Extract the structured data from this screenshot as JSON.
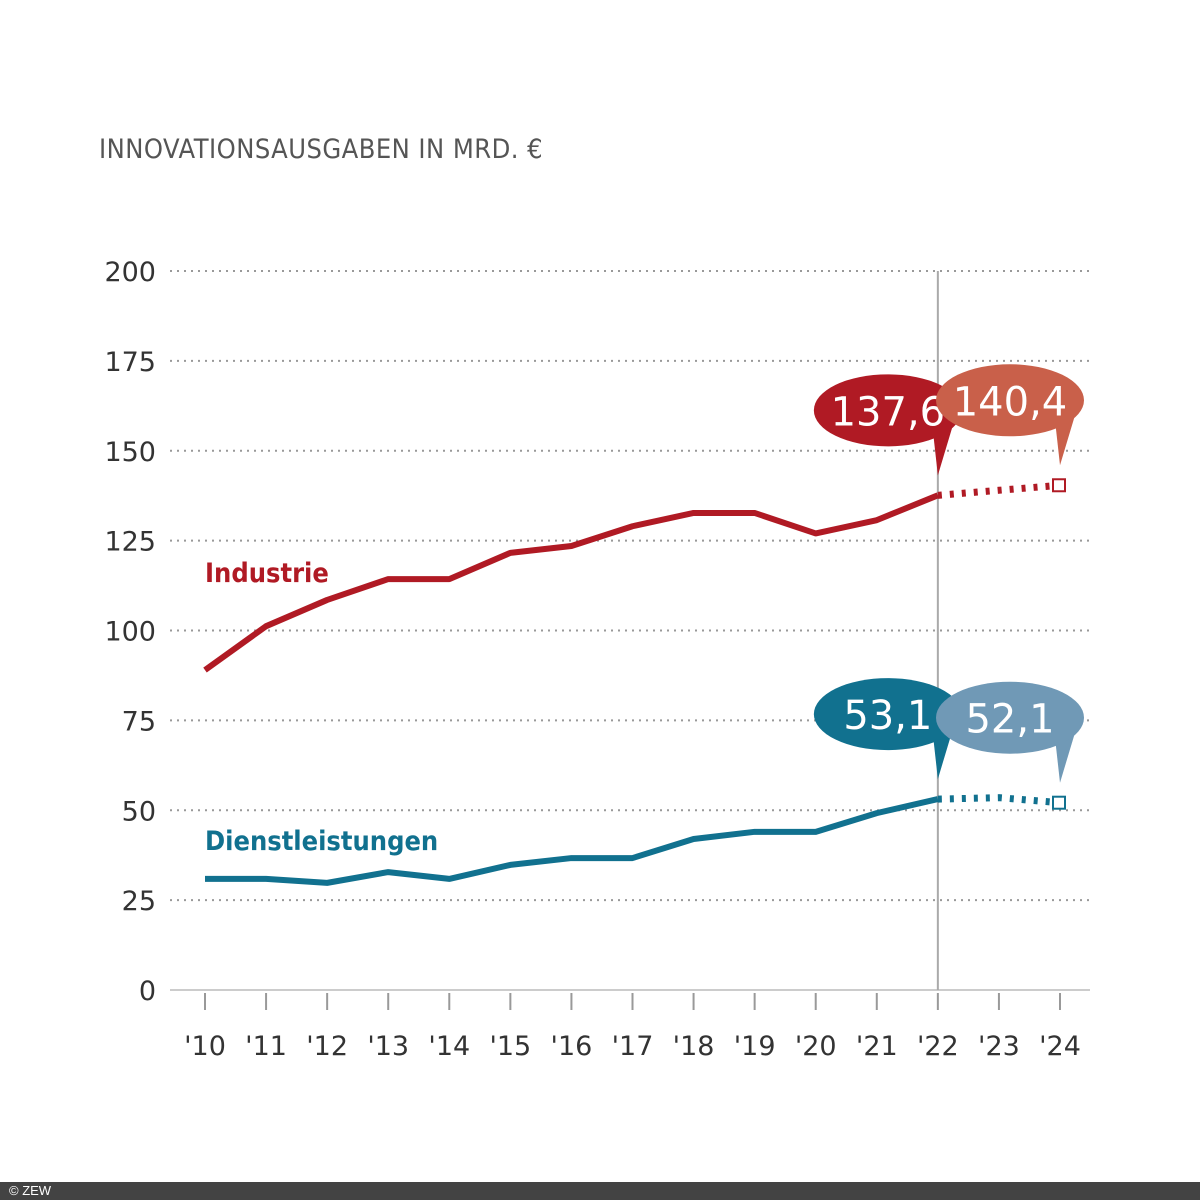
{
  "chart_data": {
    "type": "line",
    "title": "INNOVATIONSAUSGABEN IN MRD. €",
    "xlabel": "",
    "ylabel": "",
    "x": [
      "'10",
      "'11",
      "'12",
      "'13",
      "'14",
      "'15",
      "'16",
      "'17",
      "'18",
      "'19",
      "'20",
      "'21",
      "'22",
      "'23",
      "'24"
    ],
    "ylim": [
      0,
      200
    ],
    "yticks": [
      "0",
      "25",
      "50",
      "75",
      "100",
      "125",
      "150",
      "175",
      "200"
    ],
    "grid": true,
    "forecast_from": "'22",
    "series": [
      {
        "name": "Industrie",
        "color": "#b01a24",
        "values": [
          89.0,
          101.2,
          108.5,
          114.3,
          114.3,
          121.6,
          123.5,
          129.0,
          132.7,
          132.7,
          127.0,
          130.7,
          137.6,
          139.0,
          140.4
        ],
        "callouts": [
          {
            "x": "'22",
            "label": "137,6",
            "color": "#b01a24"
          },
          {
            "x": "'24",
            "label": "140,4",
            "color": "#c9604a"
          }
        ]
      },
      {
        "name": "Dienstleistungen",
        "color": "#11718f",
        "values": [
          30.9,
          30.9,
          29.8,
          32.8,
          30.9,
          34.8,
          36.7,
          36.7,
          42.0,
          44.0,
          44.0,
          49.2,
          53.1,
          53.5,
          52.1
        ],
        "callouts": [
          {
            "x": "'22",
            "label": "53,1",
            "color": "#11718f"
          },
          {
            "x": "'24",
            "label": "52,1",
            "color": "#7099b6"
          }
        ]
      }
    ]
  },
  "footer": {
    "copyright": "© ZEW"
  }
}
